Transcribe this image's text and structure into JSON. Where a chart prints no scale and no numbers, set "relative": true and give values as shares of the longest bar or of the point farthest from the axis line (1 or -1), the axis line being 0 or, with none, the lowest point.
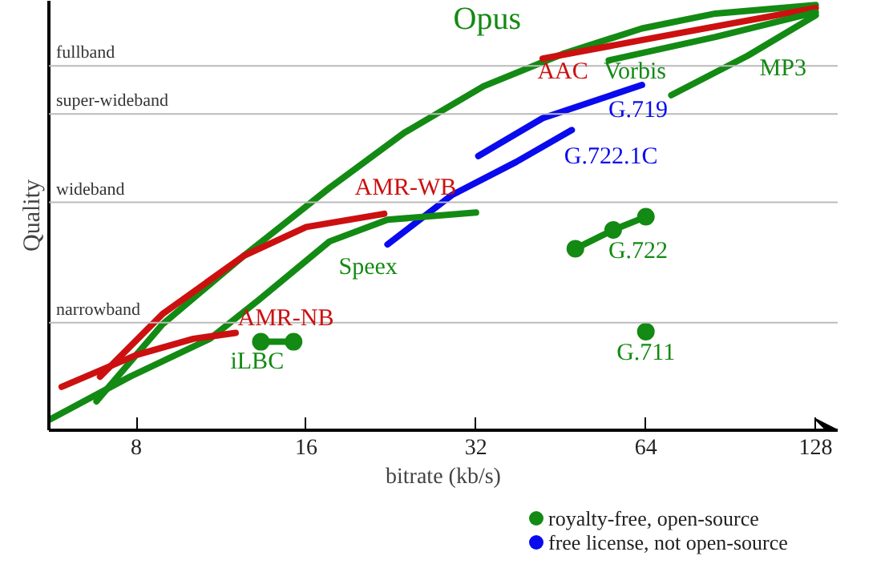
{
  "chart_data": {
    "type": "line",
    "relative": true,
    "xlabel": "bitrate (kb/s)",
    "ylabel": "Quality",
    "log": "x",
    "xlim": [
      5.6,
      140
    ],
    "xticks": [
      8,
      16,
      32,
      64,
      128
    ],
    "grid": false,
    "line_style": "solid",
    "series": [
      {
        "name": "Opus",
        "color": "#138a13",
        "x": [
          6.8,
          8.9,
          12.4,
          17.6,
          23.9,
          33,
          46,
          63,
          85,
          128
        ],
        "values": [
          0.068,
          0.249,
          0.41,
          0.57,
          0.7,
          0.809,
          0.887,
          0.945,
          0.98,
          1.0
        ]
      },
      {
        "name": "AAC",
        "color": "#cc1010",
        "x": [
          42,
          72,
          128
        ],
        "values": [
          0.874,
          0.932,
          0.993
        ]
      },
      {
        "name": "Vorbis",
        "color": "#138a13",
        "x": [
          55,
          85,
          128
        ],
        "values": [
          0.87,
          0.925,
          0.983
        ]
      },
      {
        "name": "MP3",
        "color": "#138a13",
        "x": [
          71,
          97,
          128
        ],
        "values": [
          0.788,
          0.881,
          0.976
        ]
      },
      {
        "name": "G.719",
        "color": "#0a0aee",
        "x": [
          32.3,
          42,
          63
        ],
        "values": [
          0.645,
          0.734,
          0.812
        ]
      },
      {
        "name": "G.722.1C",
        "color": "#0a0aee",
        "x": [
          22.3,
          29,
          37.7,
          47.3
        ],
        "values": [
          0.437,
          0.553,
          0.631,
          0.706
        ]
      },
      {
        "name": "AMR-WB",
        "color": "#cc1010",
        "x": [
          6.9,
          8.9,
          12.4,
          16,
          22
        ],
        "values": [
          0.126,
          0.273,
          0.41,
          0.478,
          0.509
        ]
      },
      {
        "name": "Speex",
        "color": "#138a13",
        "x": [
          5.6,
          7.8,
          10.8,
          13.2,
          17.6,
          22.3,
          32
        ],
        "values": [
          0.024,
          0.126,
          0.215,
          0.307,
          0.444,
          0.495,
          0.512
        ]
      },
      {
        "name": "G.722",
        "color": "#138a13",
        "marker": "circle",
        "x": [
          48,
          56,
          64
        ],
        "values": [
          0.427,
          0.471,
          0.502
        ]
      },
      {
        "name": "AMR-NB",
        "color": "#cc1010",
        "x": [
          5.9,
          8,
          10.1,
          12
        ],
        "values": [
          0.102,
          0.177,
          0.215,
          0.229
        ]
      },
      {
        "name": "iLBC",
        "color": "#138a13",
        "marker": "circle",
        "x": [
          13.3,
          15.2
        ],
        "values": [
          0.208,
          0.208
        ]
      },
      {
        "name": "G.711",
        "type": "scatter",
        "color": "#138a13",
        "x": [
          64
        ],
        "values": [
          0.232
        ]
      }
    ],
    "ref_lines": [
      {
        "axis": "y",
        "value": 0.857,
        "label": "fullband",
        "color": "#bbbbbb"
      },
      {
        "axis": "y",
        "value": 0.744,
        "label": "super-wideband",
        "color": "#bbbbbb"
      },
      {
        "axis": "y",
        "value": 0.536,
        "label": "wideband",
        "color": "#bbbbbb"
      },
      {
        "axis": "y",
        "value": 0.253,
        "label": "narrowband",
        "color": "#bbbbbb"
      }
    ],
    "annotations": [
      "royalty-free, open-source",
      "free license, not open-source"
    ]
  }
}
